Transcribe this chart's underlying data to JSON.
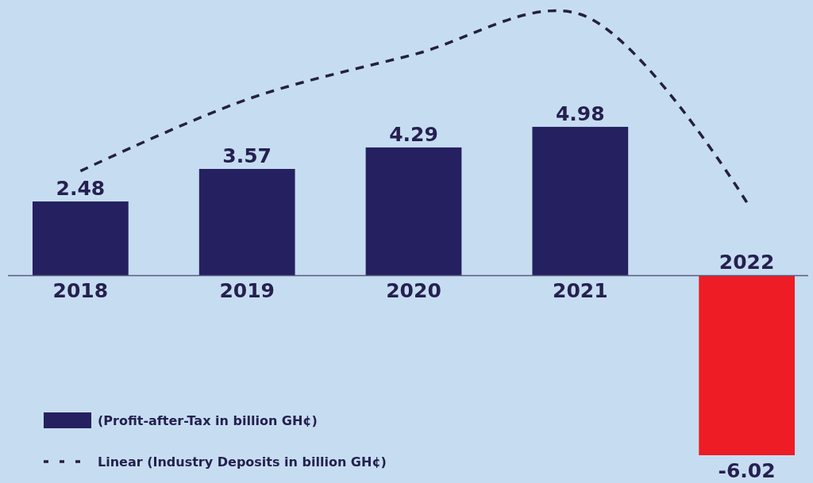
{
  "chart_data": {
    "type": "bar",
    "categories": [
      "2018",
      "2019",
      "2020",
      "2021",
      "2022"
    ],
    "series": [
      {
        "name": "(Profit-after-Tax in billion GH¢)",
        "color": "#252060",
        "colors": [
          "#252060",
          "#252060",
          "#252060",
          "#252060",
          "#ee1c24"
        ],
        "values": [
          2.48,
          3.57,
          4.29,
          4.98,
          -6.02
        ],
        "value_labels": [
          "2.48",
          "3.57",
          "4.29",
          "4.98",
          "-6.02"
        ]
      },
      {
        "name": "Linear (Industry Deposits in billion GH¢)",
        "type": "line",
        "color": "#252040",
        "line_style": "dashed",
        "values": [
          3.5,
          5.9,
          7.4,
          8.75,
          2.45
        ]
      }
    ],
    "legend": "bottom left"
  }
}
